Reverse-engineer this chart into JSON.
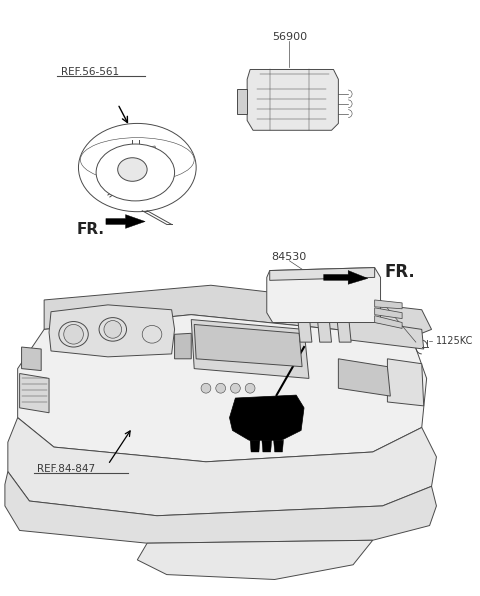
{
  "background_color": "#ffffff",
  "fig_width": 4.8,
  "fig_height": 5.96,
  "dpi": 100,
  "labels": {
    "ref_56_561": "REF.56-561",
    "part_56900": "56900",
    "fr_lower": "FR.",
    "part_84530": "84530",
    "fr_upper": "FR.",
    "ref_84_847": "REF.84-847",
    "part_1125kc": "1125KC"
  },
  "colors": {
    "line": "#4a4a4a",
    "fill_dark": "#000000",
    "fill_med": "#b0b0b0",
    "fill_light": "#e0e0e0",
    "bg": "#ffffff",
    "text": "#3a3a3a"
  }
}
